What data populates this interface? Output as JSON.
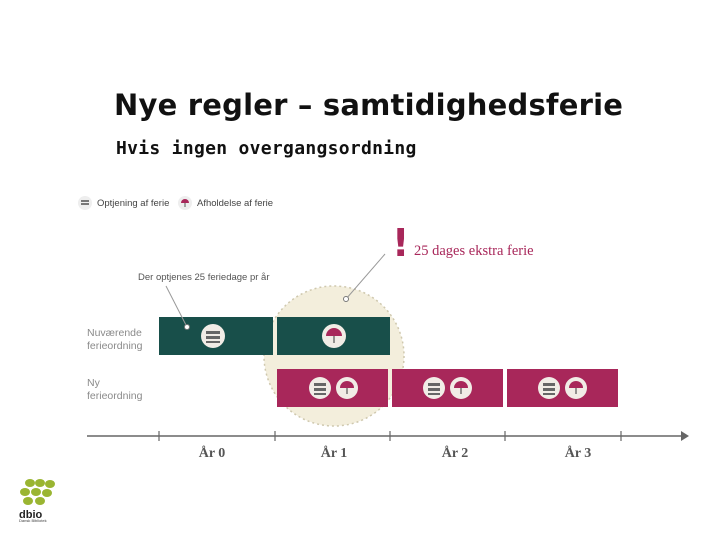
{
  "slide": {
    "title": "Nye regler – samtidighedsferie",
    "subtitle": "Hvis ingen overgangsordning"
  },
  "legend": {
    "earning_label": "Optjening af ferie",
    "earning_icon": "coins-icon",
    "holiday_label": "Afholdelse af ferie",
    "holiday_icon": "umbrella-icon"
  },
  "annotations": {
    "extra_days": "25 dages ekstra ferie",
    "accrual_note": "Der optjenes 25 feriedage pr år"
  },
  "rows": [
    {
      "label_line1": "Nuværende",
      "label_line2": "ferieordning",
      "color": "#184f4a"
    },
    {
      "label_line1": "Ny",
      "label_line2": "ferieordning",
      "color": "#a8275a"
    }
  ],
  "timeline": {
    "years": [
      "År 0",
      "År 1",
      "År 2",
      "År 3"
    ]
  },
  "logo": {
    "name": "dbio",
    "tagline": "Dansk Bibliotek"
  },
  "colors": {
    "accent": "#a8275a",
    "teal": "#184f4a",
    "highlight_circle": "#f3eedc"
  }
}
